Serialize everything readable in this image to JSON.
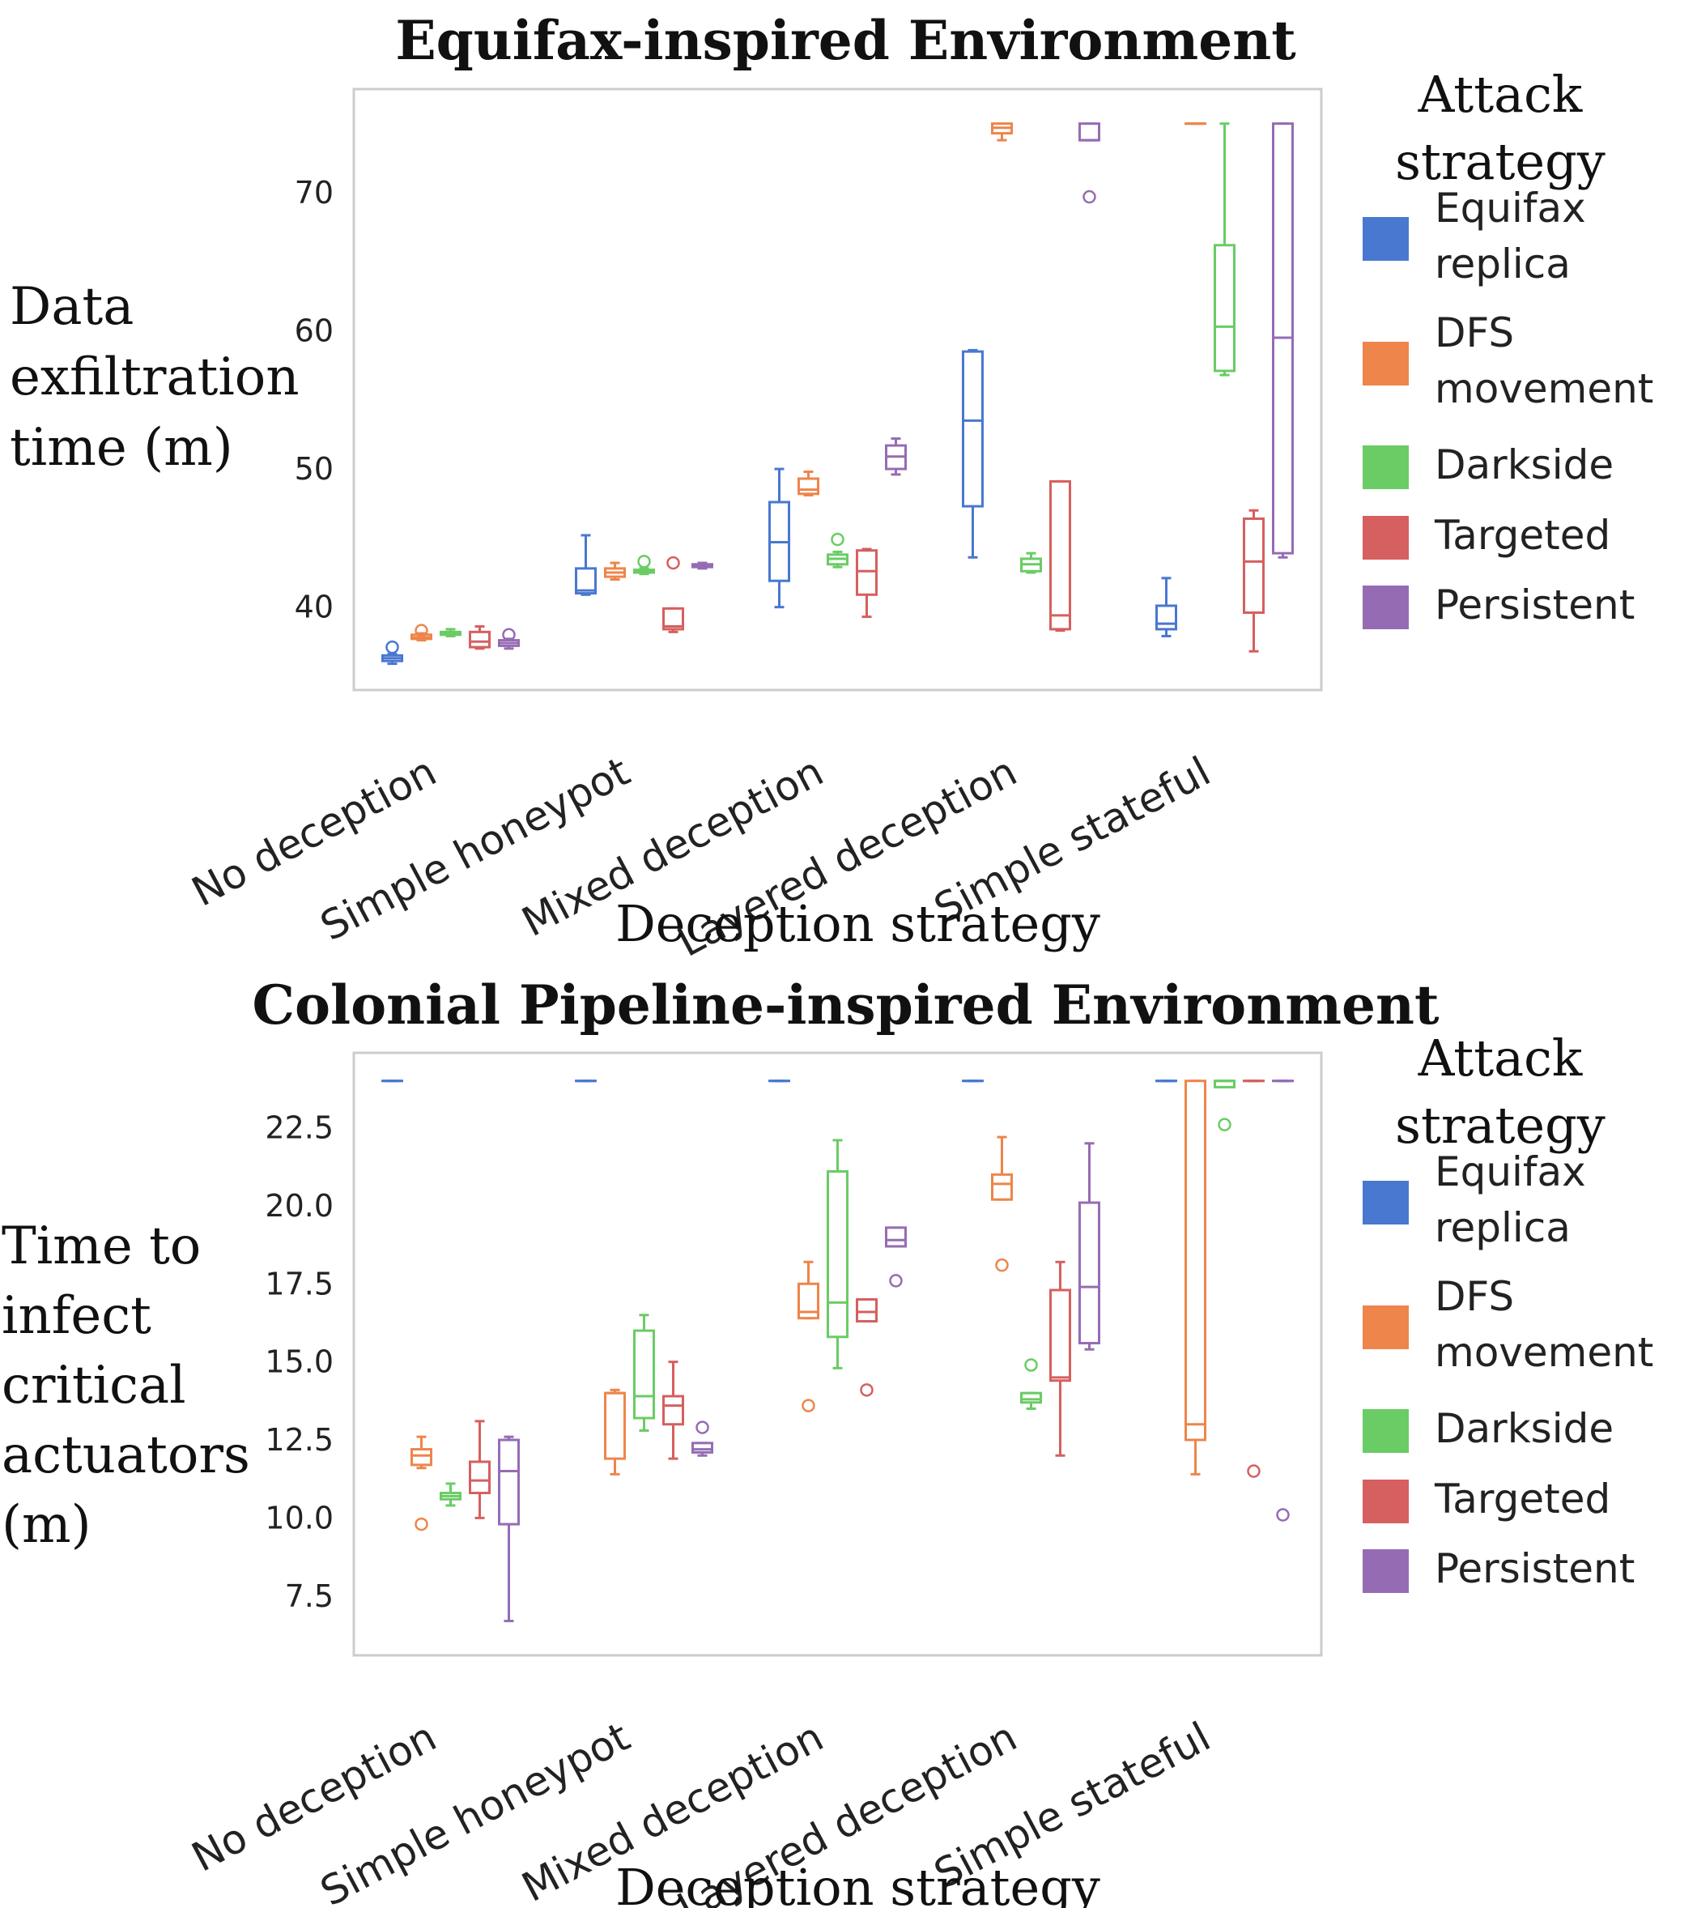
{
  "colors": {
    "Equifax replica": "#4878d0",
    "DFS movement": "#ee854a",
    "Darkside": "#6acc64",
    "Targeted": "#d65f5f",
    "Persistent": "#956cb4"
  },
  "chart_data": [
    {
      "type": "box",
      "title": "Equifax-inspired Environment",
      "xlabel": "Deception strategy",
      "ylabel_lines": [
        "Data",
        "exfiltration",
        "time (m)"
      ],
      "ylim": [
        34,
        77.5
      ],
      "yticks": [
        40,
        50,
        60,
        70
      ],
      "ytick_labels": [
        "40",
        "50",
        "60",
        "70"
      ],
      "grid": false,
      "legend": {
        "title_lines": [
          "Attack",
          "strategy"
        ],
        "placement": "outside-right"
      },
      "categories": [
        "No deception",
        "Simple honeypot",
        "Mixed deception",
        "Layered deception",
        "Simple stateful"
      ],
      "series": [
        {
          "name": "Equifax replica",
          "legend_lines": [
            "Equifax",
            "replica"
          ],
          "boxes": [
            {
              "whislo": 35.9,
              "q1": 36.1,
              "med": 36.3,
              "q3": 36.5,
              "whishi": 36.6,
              "fliers": [
                37.1
              ]
            },
            {
              "whislo": 40.9,
              "q1": 41.0,
              "med": 41.2,
              "q3": 42.8,
              "whishi": 45.2,
              "fliers": []
            },
            {
              "whislo": 40.0,
              "q1": 41.9,
              "med": 44.7,
              "q3": 47.6,
              "whishi": 50.0,
              "fliers": []
            },
            {
              "whislo": 43.6,
              "q1": 47.3,
              "med": 53.5,
              "q3": 58.5,
              "whishi": 58.6,
              "fliers": []
            },
            {
              "whislo": 37.9,
              "q1": 38.4,
              "med": 38.8,
              "q3": 40.1,
              "whishi": 42.1,
              "fliers": []
            }
          ]
        },
        {
          "name": "DFS movement",
          "legend_lines": [
            "DFS",
            "movement"
          ],
          "boxes": [
            {
              "whislo": 37.6,
              "q1": 37.7,
              "med": 37.8,
              "q3": 38.0,
              "whishi": 38.1,
              "fliers": [
                38.3
              ]
            },
            {
              "whislo": 42.0,
              "q1": 42.2,
              "med": 42.5,
              "q3": 42.8,
              "whishi": 43.2,
              "fliers": []
            },
            {
              "whislo": 48.1,
              "q1": 48.2,
              "med": 48.5,
              "q3": 49.3,
              "whishi": 49.8,
              "fliers": []
            },
            {
              "whislo": 73.8,
              "q1": 74.3,
              "med": 74.7,
              "q3": 75.0,
              "whishi": 75.0,
              "fliers": []
            },
            {
              "whislo": 75.0,
              "q1": 75.0,
              "med": 75.0,
              "q3": 75.0,
              "whishi": 75.0,
              "fliers": []
            }
          ]
        },
        {
          "name": "Darkside",
          "legend_lines": [
            "Darkside"
          ],
          "boxes": [
            {
              "whislo": 37.9,
              "q1": 38.0,
              "med": 38.1,
              "q3": 38.2,
              "whishi": 38.4,
              "fliers": []
            },
            {
              "whislo": 42.4,
              "q1": 42.5,
              "med": 42.6,
              "q3": 42.7,
              "whishi": 42.8,
              "fliers": [
                43.3
              ]
            },
            {
              "whislo": 42.9,
              "q1": 43.1,
              "med": 43.5,
              "q3": 43.8,
              "whishi": 44.0,
              "fliers": [
                44.9
              ]
            },
            {
              "whislo": 42.5,
              "q1": 42.6,
              "med": 43.1,
              "q3": 43.5,
              "whishi": 43.9,
              "fliers": []
            },
            {
              "whislo": 56.8,
              "q1": 57.1,
              "med": 60.3,
              "q3": 66.2,
              "whishi": 75.0,
              "fliers": []
            }
          ]
        },
        {
          "name": "Targeted",
          "legend_lines": [
            "Targeted"
          ],
          "boxes": [
            {
              "whislo": 37.0,
              "q1": 37.1,
              "med": 37.5,
              "q3": 38.2,
              "whishi": 38.6,
              "fliers": []
            },
            {
              "whislo": 38.2,
              "q1": 38.4,
              "med": 38.6,
              "q3": 39.9,
              "whishi": 39.9,
              "fliers": [
                43.2
              ]
            },
            {
              "whislo": 39.3,
              "q1": 40.9,
              "med": 42.6,
              "q3": 44.1,
              "whishi": 44.2,
              "fliers": []
            },
            {
              "whislo": 38.3,
              "q1": 38.4,
              "med": 39.4,
              "q3": 49.1,
              "whishi": 49.1,
              "fliers": []
            },
            {
              "whislo": 36.8,
              "q1": 39.6,
              "med": 43.3,
              "q3": 46.4,
              "whishi": 47.0,
              "fliers": []
            }
          ]
        },
        {
          "name": "Persistent",
          "legend_lines": [
            "Persistent"
          ],
          "boxes": [
            {
              "whislo": 37.0,
              "q1": 37.2,
              "med": 37.4,
              "q3": 37.6,
              "whishi": 37.7,
              "fliers": [
                38.0
              ]
            },
            {
              "whislo": 42.8,
              "q1": 42.9,
              "med": 43.0,
              "q3": 43.1,
              "whishi": 43.2,
              "fliers": []
            },
            {
              "whislo": 49.6,
              "q1": 50.0,
              "med": 50.9,
              "q3": 51.7,
              "whishi": 52.2,
              "fliers": []
            },
            {
              "whislo": 73.8,
              "q1": 73.8,
              "med": 73.8,
              "q3": 75.0,
              "whishi": 75.0,
              "fliers": [
                69.7
              ]
            },
            {
              "whislo": 43.6,
              "q1": 43.9,
              "med": 59.5,
              "q3": 75.0,
              "whishi": 75.0,
              "fliers": []
            }
          ]
        }
      ]
    },
    {
      "type": "box",
      "title": "Colonial Pipeline-inspired Environment",
      "xlabel": "Deception strategy",
      "ylabel_lines": [
        "Time to",
        "infect",
        "critical",
        "actuators",
        "(m)"
      ],
      "ylim": [
        5.6,
        24.9
      ],
      "yticks": [
        7.5,
        10.0,
        12.5,
        15.0,
        17.5,
        20.0,
        22.5
      ],
      "ytick_labels": [
        "7.5",
        "10.0",
        "12.5",
        "15.0",
        "17.5",
        "20.0",
        "22.5"
      ],
      "grid": false,
      "legend": {
        "title_lines": [
          "Attack",
          "strategy"
        ],
        "placement": "outside-right"
      },
      "categories": [
        "No deception",
        "Simple honeypot",
        "Mixed deception",
        "Layered deception",
        "Simple stateful"
      ],
      "series": [
        {
          "name": "Equifax replica",
          "legend_lines": [
            "Equifax",
            "replica"
          ],
          "boxes": [
            {
              "whislo": 24.0,
              "q1": 24.0,
              "med": 24.0,
              "q3": 24.0,
              "whishi": 24.0,
              "fliers": []
            },
            {
              "whislo": 24.0,
              "q1": 24.0,
              "med": 24.0,
              "q3": 24.0,
              "whishi": 24.0,
              "fliers": []
            },
            {
              "whislo": 24.0,
              "q1": 24.0,
              "med": 24.0,
              "q3": 24.0,
              "whishi": 24.0,
              "fliers": []
            },
            {
              "whislo": 24.0,
              "q1": 24.0,
              "med": 24.0,
              "q3": 24.0,
              "whishi": 24.0,
              "fliers": []
            },
            {
              "whislo": 24.0,
              "q1": 24.0,
              "med": 24.0,
              "q3": 24.0,
              "whishi": 24.0,
              "fliers": []
            }
          ]
        },
        {
          "name": "DFS movement",
          "legend_lines": [
            "DFS",
            "movement"
          ],
          "boxes": [
            {
              "whislo": 11.6,
              "q1": 11.7,
              "med": 12.0,
              "q3": 12.2,
              "whishi": 12.6,
              "fliers": [
                9.8
              ]
            },
            {
              "whislo": 11.4,
              "q1": 11.9,
              "med": 14.0,
              "q3": 14.0,
              "whishi": 14.1,
              "fliers": []
            },
            {
              "whislo": 16.4,
              "q1": 16.4,
              "med": 16.6,
              "q3": 17.5,
              "whishi": 18.2,
              "fliers": [
                13.6
              ]
            },
            {
              "whislo": 20.2,
              "q1": 20.2,
              "med": 20.7,
              "q3": 21.0,
              "whishi": 22.2,
              "fliers": [
                18.1
              ]
            },
            {
              "whislo": 11.4,
              "q1": 12.5,
              "med": 13.0,
              "q3": 24.0,
              "whishi": 24.0,
              "fliers": []
            }
          ]
        },
        {
          "name": "Darkside",
          "legend_lines": [
            "Darkside"
          ],
          "boxes": [
            {
              "whislo": 10.4,
              "q1": 10.6,
              "med": 10.7,
              "q3": 10.8,
              "whishi": 11.1,
              "fliers": []
            },
            {
              "whislo": 12.8,
              "q1": 13.2,
              "med": 13.9,
              "q3": 16.0,
              "whishi": 16.5,
              "fliers": []
            },
            {
              "whislo": 14.8,
              "q1": 15.8,
              "med": 16.9,
              "q3": 21.1,
              "whishi": 22.1,
              "fliers": []
            },
            {
              "whislo": 13.5,
              "q1": 13.7,
              "med": 13.8,
              "q3": 14.0,
              "whishi": 14.0,
              "fliers": [
                14.9
              ]
            },
            {
              "whislo": 23.8,
              "q1": 23.8,
              "med": 24.0,
              "q3": 24.0,
              "whishi": 24.0,
              "fliers": [
                22.6
              ]
            }
          ]
        },
        {
          "name": "Targeted",
          "legend_lines": [
            "Targeted"
          ],
          "boxes": [
            {
              "whislo": 10.0,
              "q1": 10.8,
              "med": 11.2,
              "q3": 11.8,
              "whishi": 13.1,
              "fliers": []
            },
            {
              "whislo": 11.9,
              "q1": 13.0,
              "med": 13.6,
              "q3": 13.9,
              "whishi": 15.0,
              "fliers": []
            },
            {
              "whislo": 16.3,
              "q1": 16.3,
              "med": 16.6,
              "q3": 17.0,
              "whishi": 17.0,
              "fliers": [
                14.1
              ]
            },
            {
              "whislo": 12.0,
              "q1": 14.4,
              "med": 14.5,
              "q3": 17.3,
              "whishi": 18.2,
              "fliers": []
            },
            {
              "whislo": 24.0,
              "q1": 24.0,
              "med": 24.0,
              "q3": 24.0,
              "whishi": 24.0,
              "fliers": [
                11.5
              ]
            }
          ]
        },
        {
          "name": "Persistent",
          "legend_lines": [
            "Persistent"
          ],
          "boxes": [
            {
              "whislo": 6.7,
              "q1": 9.8,
              "med": 11.5,
              "q3": 12.5,
              "whishi": 12.6,
              "fliers": []
            },
            {
              "whislo": 12.0,
              "q1": 12.1,
              "med": 12.2,
              "q3": 12.4,
              "whishi": 12.4,
              "fliers": [
                12.9
              ]
            },
            {
              "whislo": 18.7,
              "q1": 18.7,
              "med": 18.9,
              "q3": 19.3,
              "whishi": 19.3,
              "fliers": [
                17.6
              ]
            },
            {
              "whislo": 15.4,
              "q1": 15.6,
              "med": 17.4,
              "q3": 20.1,
              "whishi": 22.0,
              "fliers": []
            },
            {
              "whislo": 24.0,
              "q1": 24.0,
              "med": 24.0,
              "q3": 24.0,
              "whishi": 24.0,
              "fliers": [
                10.1
              ]
            }
          ]
        }
      ]
    }
  ]
}
